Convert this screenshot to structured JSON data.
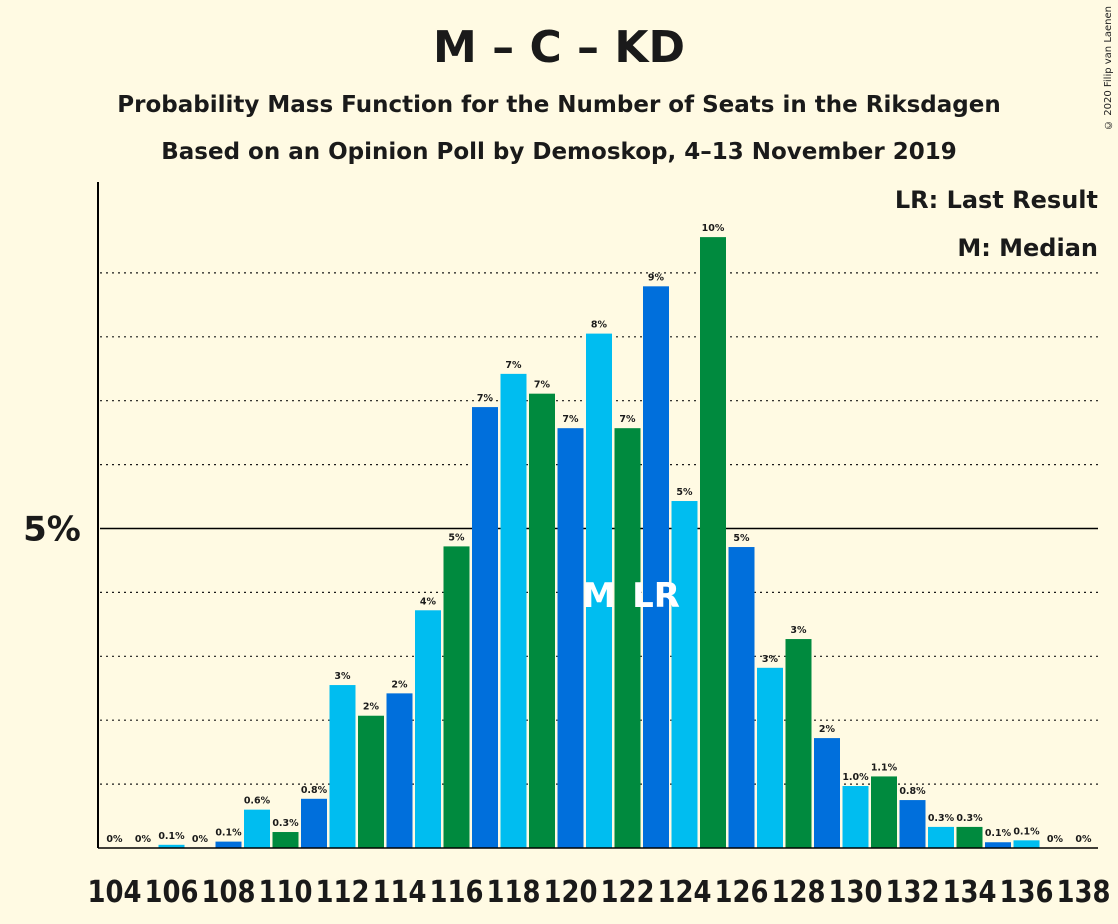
{
  "title": "M – C – KD",
  "subtitle": "Probability Mass Function for the Number of Seats in the Riksdagen",
  "subtitle2": "Based on an Opinion Poll by Demoskop, 4–13 November 2019",
  "copyright": "© 2020 Filip van Laenen",
  "legend": {
    "last_result": "LR: Last Result",
    "median": "M: Median"
  },
  "colors": {
    "background": "#fffae3",
    "green": "#008a3e",
    "blue": "#006fdc",
    "light_blue": "#00bdf0"
  },
  "chart_data": {
    "type": "bar",
    "xlabel": "",
    "ylabel": "",
    "ylim": [
      0,
      10.5
    ],
    "ytick_label": "5%",
    "ytick_value": 5,
    "grid": "dotted horizontal lines every 1%",
    "x": [
      104,
      105,
      106,
      107,
      108,
      109,
      110,
      111,
      112,
      113,
      114,
      115,
      116,
      117,
      118,
      119,
      120,
      121,
      122,
      123,
      124,
      125,
      126,
      127,
      128,
      129,
      130,
      131,
      132,
      133,
      134,
      135,
      136,
      137,
      138
    ],
    "xtick_labels": [
      "104",
      "106",
      "108",
      "110",
      "112",
      "114",
      "116",
      "118",
      "120",
      "122",
      "124",
      "126",
      "128",
      "130",
      "132",
      "134",
      "136",
      "138"
    ],
    "values": [
      0,
      0,
      0.05,
      0,
      0.1,
      0.6,
      0.25,
      0.77,
      2.55,
      2.07,
      2.42,
      3.72,
      4.72,
      6.9,
      7.42,
      7.11,
      6.57,
      8.05,
      6.57,
      8.79,
      5.43,
      9.56,
      4.71,
      2.82,
      3.27,
      1.72,
      0.97,
      1.12,
      0.75,
      0.33,
      0.33,
      0.09,
      0.12,
      0,
      0
    ],
    "labels": [
      "0%",
      "0%",
      "0.1%",
      "0%",
      "0.1%",
      "0.6%",
      "0.3%",
      "0.8%",
      "3%",
      "2%",
      "2%",
      "4%",
      "5%",
      "7%",
      "7%",
      "7%",
      "7%",
      "8%",
      "7%",
      "9%",
      "5%",
      "10%",
      "5%",
      "3%",
      "3%",
      "2%",
      "1.0%",
      "1.1%",
      "0.8%",
      "0.3%",
      "0.3%",
      "0.1%",
      "0.1%",
      "0%",
      "0%"
    ],
    "median_seat": 121,
    "median_marker": "M",
    "last_result_seat": 123,
    "last_result_marker": "LR"
  }
}
